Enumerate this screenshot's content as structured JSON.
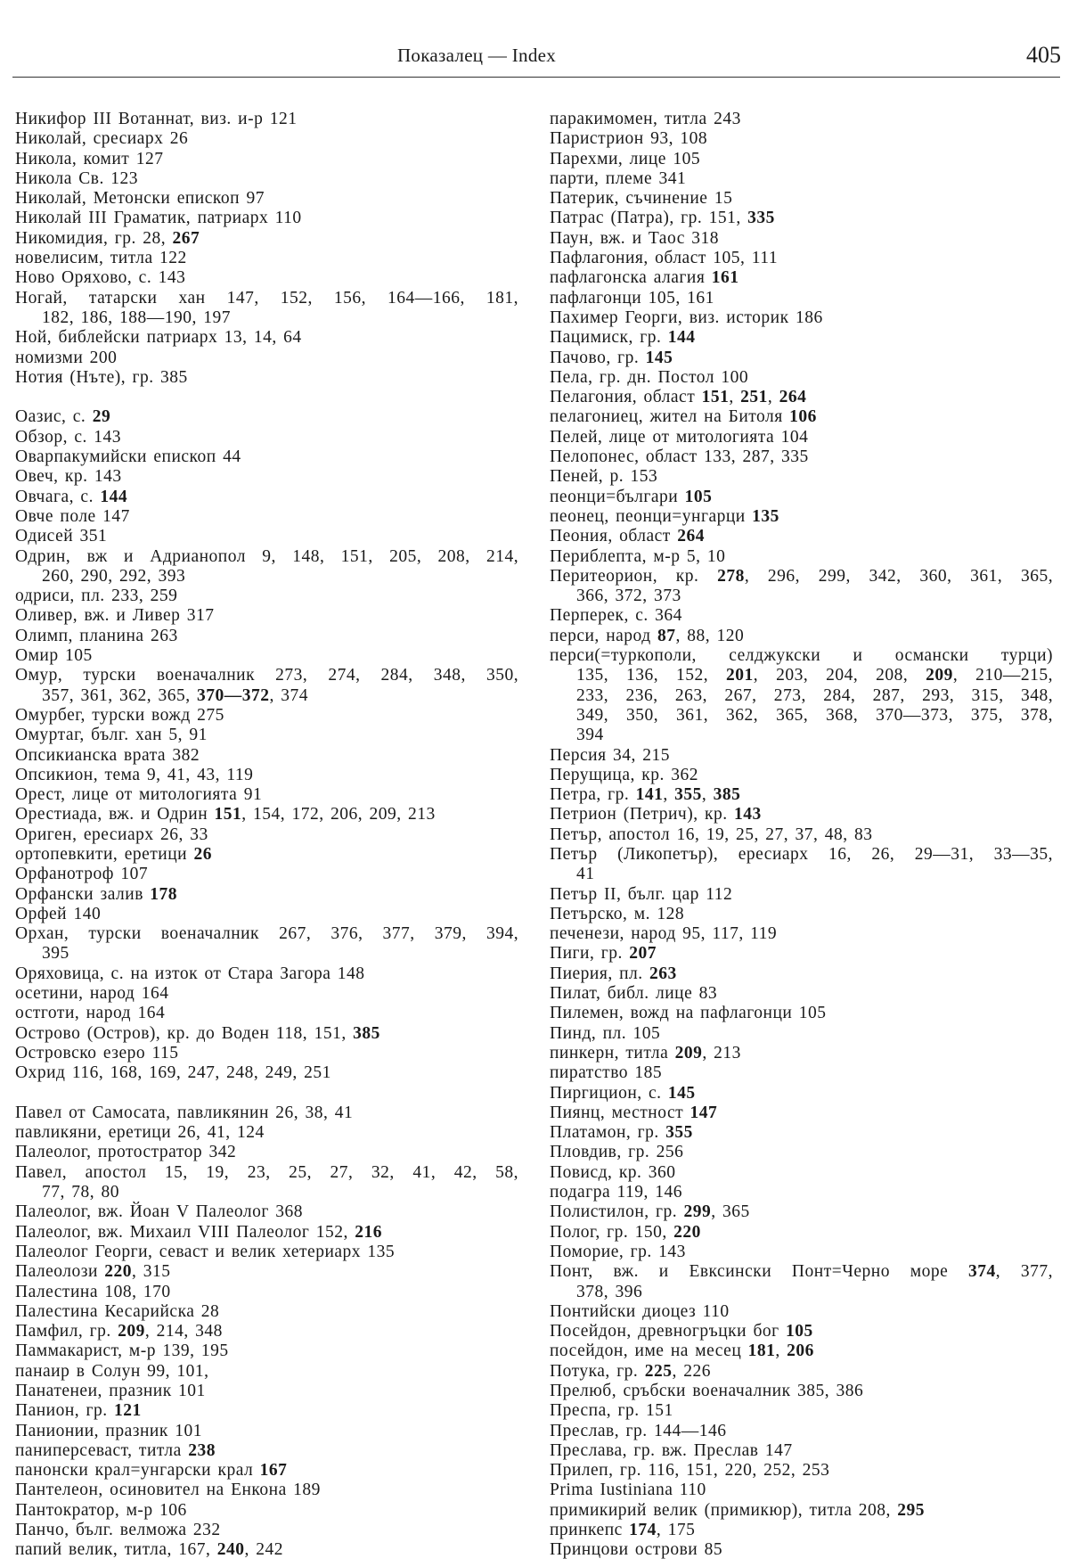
{
  "header": {
    "running_title": "Показалец — Index",
    "page_number": "405"
  },
  "columns": [
    [
      {
        "lines": [
          "Никифор III Вотаннат, виз. и-р 121"
        ]
      },
      {
        "lines": [
          "Николай, сресиарх 26"
        ]
      },
      {
        "lines": [
          "Никола, комит 127"
        ]
      },
      {
        "lines": [
          "Никола Св. 123"
        ]
      },
      {
        "lines": [
          "Николай, Метонски епископ 97"
        ]
      },
      {
        "lines": [
          "Николай III Граматик, патриарх 110"
        ]
      },
      {
        "lines": [
          "Никомидия, гр. 28, 267"
        ],
        "bold": [
          "267"
        ]
      },
      {
        "lines": [
          "новелисим, титла 122"
        ]
      },
      {
        "lines": [
          "Ново Оряхово, с. 143"
        ]
      },
      {
        "lines": [
          "Ногай, татарски хан 147, 152, 156, 164—166, 181,",
          "182, 186, 188—190, 197"
        ]
      },
      {
        "lines": [
          "Ной, библейски патриарх 13, 14, 64"
        ]
      },
      {
        "lines": [
          "номизми 200"
        ]
      },
      {
        "lines": [
          "Нотия (Нъте), гр. 385"
        ]
      },
      {
        "lines": [
          ""
        ]
      },
      {
        "lines": [
          "Оазис, с. 29"
        ],
        "bold": [
          "29"
        ]
      },
      {
        "lines": [
          "Обзор, с. 143"
        ]
      },
      {
        "lines": [
          "Оварпакумийски епископ 44"
        ]
      },
      {
        "lines": [
          "Овеч, кр. 143"
        ]
      },
      {
        "lines": [
          "Овчага, с. 144"
        ],
        "bold": [
          "144"
        ]
      },
      {
        "lines": [
          "Овче поле 147"
        ]
      },
      {
        "lines": [
          "Одисей 351"
        ]
      },
      {
        "lines": [
          "Одрин, вж и Адрианопол 9, 148, 151, 205, 208, 214,",
          "260, 290, 292, 393"
        ]
      },
      {
        "lines": [
          "одриси, пл. 233, 259"
        ]
      },
      {
        "lines": [
          "Оливер, вж. и Ливер 317"
        ]
      },
      {
        "lines": [
          "Олимп, планина 263"
        ]
      },
      {
        "lines": [
          "Омир 105"
        ]
      },
      {
        "lines": [
          "Омур, турски военачалник 273, 274, 284, 348, 350,",
          "357, 361, 362, 365, 370—372, 374"
        ],
        "bold": [
          "370—372"
        ]
      },
      {
        "lines": [
          "Омурбег, турски вожд 275"
        ]
      },
      {
        "lines": [
          "Омуртаг, бълг. хан 5, 91"
        ]
      },
      {
        "lines": [
          "Опсикианска врата 382"
        ]
      },
      {
        "lines": [
          "Опсикион, тема 9, 41, 43, 119"
        ]
      },
      {
        "lines": [
          "Орест, лице от митологията 91"
        ]
      },
      {
        "lines": [
          "Орестиада, вж. и Одрин 151, 154, 172, 206, 209, 213"
        ],
        "bold": [
          "151"
        ]
      },
      {
        "lines": [
          "Ориген, ересиарх 26, 33"
        ]
      },
      {
        "lines": [
          "ортопевкити, еретици 26"
        ],
        "bold": [
          "26"
        ]
      },
      {
        "lines": [
          "Орфанотроф 107"
        ]
      },
      {
        "lines": [
          "Орфански залив 178"
        ],
        "bold": [
          "178"
        ]
      },
      {
        "lines": [
          "Орфей 140"
        ]
      },
      {
        "lines": [
          "Орхан, турски военачалник 267, 376, 377, 379, 394,",
          "395"
        ]
      },
      {
        "lines": [
          "Оряховица, с. на изток от Стара Загора 148"
        ]
      },
      {
        "lines": [
          "осетини, народ 164"
        ]
      },
      {
        "lines": [
          "остготи, народ 164"
        ]
      },
      {
        "lines": [
          "Острово (Остров), кр. до Воден 118, 151, 385"
        ],
        "bold": [
          "385"
        ]
      },
      {
        "lines": [
          "Островско езеро 115"
        ]
      },
      {
        "lines": [
          "Охрид 116, 168, 169, 247, 248, 249, 251"
        ]
      },
      {
        "lines": [
          ""
        ]
      },
      {
        "lines": [
          "Павел от Самосата, павликянин 26, 38, 41"
        ]
      },
      {
        "lines": [
          "павликяни, еретици 26, 41, 124"
        ]
      },
      {
        "lines": [
          "Палеолог, протостратор 342"
        ]
      },
      {
        "lines": [
          "Павел, апостол 15, 19, 23, 25, 27, 32, 41, 42, 58,",
          "77, 78, 80"
        ]
      },
      {
        "lines": [
          "Палеолог, вж. Йоан V Палеолог 368"
        ]
      },
      {
        "lines": [
          "Палеолог, вж. Михаил VIII Палеолог 152, 216"
        ],
        "bold": [
          "216"
        ]
      },
      {
        "lines": [
          "Палеолог Георги, севаст и велик хетериарх 135"
        ]
      },
      {
        "lines": [
          "Палеолози 220, 315"
        ],
        "bold": [
          "220"
        ]
      },
      {
        "lines": [
          "Палестина 108, 170"
        ]
      },
      {
        "lines": [
          "Палестина Кесарийска 28"
        ]
      },
      {
        "lines": [
          "Памфил, гр. 209, 214, 348"
        ],
        "bold": [
          "209"
        ]
      },
      {
        "lines": [
          "Паммакарист, м-р 139, 195"
        ]
      },
      {
        "lines": [
          "панаир в Солун 99, 101,"
        ]
      },
      {
        "lines": [
          "Панатенеи, празник 101"
        ]
      },
      {
        "lines": [
          "Панион, гр. 121"
        ],
        "bold": [
          "121"
        ]
      },
      {
        "lines": [
          "Панионии, празник 101"
        ]
      },
      {
        "lines": [
          "паниперсеваст, титла 238"
        ],
        "bold": [
          "238"
        ]
      },
      {
        "lines": [
          "панонски крал=унгарски крал 167"
        ],
        "bold": [
          "167"
        ]
      },
      {
        "lines": [
          "Пантелеон, осиновител на Енкона 189"
        ]
      },
      {
        "lines": [
          "Пантократор, м-р 106"
        ]
      },
      {
        "lines": [
          "Панчо, бълг. велможа 232"
        ]
      },
      {
        "lines": [
          "папий велик, титла, 167, 240, 242"
        ],
        "bold": [
          "240"
        ]
      }
    ],
    [
      {
        "lines": [
          "паракимомен, титла 243"
        ]
      },
      {
        "lines": [
          "Паристрион 93, 108"
        ]
      },
      {
        "lines": [
          "Парехми, лице 105"
        ]
      },
      {
        "lines": [
          "парти, племе 341"
        ]
      },
      {
        "lines": [
          "Патерик, съчинение 15"
        ]
      },
      {
        "lines": [
          "Патрас (Патра), гр. 151, 335"
        ],
        "bold": [
          "335"
        ]
      },
      {
        "lines": [
          "Паун, вж. и Таос 318"
        ]
      },
      {
        "lines": [
          "Пафлагония, област 105, 111"
        ]
      },
      {
        "lines": [
          "пафлагонска алагия 161"
        ],
        "bold": [
          "161"
        ]
      },
      {
        "lines": [
          "пафлагонци 105, 161"
        ]
      },
      {
        "lines": [
          "Пахимер Георги, виз. историк 186"
        ]
      },
      {
        "lines": [
          "Пацимиск, гр. 144"
        ],
        "bold": [
          "144"
        ]
      },
      {
        "lines": [
          "Пачово, гр. 145"
        ],
        "bold": [
          "145"
        ]
      },
      {
        "lines": [
          "Пела, гр. дн. Постол 100"
        ]
      },
      {
        "lines": [
          "Пелагония, област 151, 251, 264"
        ],
        "bold": [
          "151",
          "251",
          "264"
        ]
      },
      {
        "lines": [
          "пелагониец, жител на Битоля 106"
        ],
        "bold": [
          "106"
        ]
      },
      {
        "lines": [
          "Пелей, лице от митологията 104"
        ]
      },
      {
        "lines": [
          "Пелопонес, област 133, 287, 335"
        ]
      },
      {
        "lines": [
          "Пеней, р. 153"
        ]
      },
      {
        "lines": [
          "пеонци=българи 105"
        ],
        "bold": [
          "105"
        ]
      },
      {
        "lines": [
          "пеонец, пеонци=унгарци 135"
        ],
        "bold": [
          "135"
        ]
      },
      {
        "lines": [
          "Пеония, област 264"
        ],
        "bold": [
          "264"
        ]
      },
      {
        "lines": [
          "Периблепта, м-р 5, 10"
        ]
      },
      {
        "lines": [
          "Перитеорион, кр. 278, 296, 299, 342, 360, 361, 365,",
          "366, 372, 373"
        ],
        "bold": [
          "278"
        ]
      },
      {
        "lines": [
          "Перперек, с. 364"
        ]
      },
      {
        "lines": [
          "перси, народ 87, 88, 120"
        ],
        "bold": [
          "87"
        ]
      },
      {
        "lines": [
          "перси(=туркополи, селджукски и османски турци)",
          "135, 136, 152, 201, 203, 204, 208, 209, 210—215,",
          "233, 236, 263, 267, 273, 284, 287, 293, 315, 348,",
          "349, 350, 361, 362, 365, 368, 370—373, 375, 378,",
          "394"
        ],
        "bold": [
          "201",
          "209"
        ]
      },
      {
        "lines": [
          "Персия 34, 215"
        ]
      },
      {
        "lines": [
          "Перущица, кр. 362"
        ]
      },
      {
        "lines": [
          "Петра, гр. 141, 355, 385"
        ],
        "bold": [
          "141",
          "355",
          "385"
        ]
      },
      {
        "lines": [
          "Петрион (Петрич), кр. 143"
        ],
        "bold": [
          "143"
        ]
      },
      {
        "lines": [
          "Петър, апостол 16, 19, 25, 27, 37, 48, 83"
        ]
      },
      {
        "lines": [
          "Петър (Ликопетър), ересиарх 16, 26, 29—31, 33—35,",
          "41"
        ]
      },
      {
        "lines": [
          "Петър II, бълг. цар 112"
        ]
      },
      {
        "lines": [
          "Петърско, м. 128"
        ]
      },
      {
        "lines": [
          "печенези, народ 95, 117, 119"
        ]
      },
      {
        "lines": [
          "Пиги, гр. 207"
        ],
        "bold": [
          "207"
        ]
      },
      {
        "lines": [
          "Пиерия, пл. 263"
        ],
        "bold": [
          "263"
        ]
      },
      {
        "lines": [
          "Пилат, библ. лице 83"
        ]
      },
      {
        "lines": [
          "Пилемен, вожд на пафлагонци 105"
        ]
      },
      {
        "lines": [
          "Пинд, пл. 105"
        ]
      },
      {
        "lines": [
          "пинкерн, титла 209, 213"
        ],
        "bold": [
          "209"
        ]
      },
      {
        "lines": [
          "пиратство 185"
        ]
      },
      {
        "lines": [
          "Пиргицион, с. 145"
        ],
        "bold": [
          "145"
        ]
      },
      {
        "lines": [
          "Пиянц, местност 147"
        ],
        "bold": [
          "147"
        ]
      },
      {
        "lines": [
          "Платамон, гр. 355"
        ],
        "bold": [
          "355"
        ]
      },
      {
        "lines": [
          "Пловдив, гр. 256"
        ]
      },
      {
        "lines": [
          "Повисд, кр. 360"
        ]
      },
      {
        "lines": [
          "подагра 119, 146"
        ]
      },
      {
        "lines": [
          "Полистилон, гр. 299, 365"
        ],
        "bold": [
          "299"
        ]
      },
      {
        "lines": [
          "Полог, гр. 150, 220"
        ],
        "bold": [
          "220"
        ]
      },
      {
        "lines": [
          "Поморие, гр. 143"
        ]
      },
      {
        "lines": [
          "Понт, вж. и Евксински Понт=Черно море 374, 377,",
          "378, 396"
        ],
        "bold": [
          "374"
        ]
      },
      {
        "lines": [
          "Понтийски диоцез 110"
        ]
      },
      {
        "lines": [
          "Посейдон, древногръцки бог 105"
        ],
        "bold": [
          "105"
        ]
      },
      {
        "lines": [
          "посейдон, име на месец 181, 206"
        ],
        "bold": [
          "181",
          "206"
        ]
      },
      {
        "lines": [
          "Потука, гр. 225, 226"
        ],
        "bold": [
          "225"
        ]
      },
      {
        "lines": [
          "Прелюб, сръбски военачалник 385, 386"
        ]
      },
      {
        "lines": [
          "Преспа, гр. 151"
        ]
      },
      {
        "lines": [
          "Преслав, гр. 144—146"
        ]
      },
      {
        "lines": [
          "Преслава, гр. вж. Преслав 147"
        ]
      },
      {
        "lines": [
          "Прилеп, гр. 116, 151, 220, 252, 253"
        ]
      },
      {
        "lines": [
          "Prima Iustiniana 110"
        ]
      },
      {
        "lines": [
          "примикирий велик (примикюр), титла 208, 295"
        ],
        "bold": [
          "295"
        ]
      },
      {
        "lines": [
          "принкепс 174, 175"
        ],
        "bold": [
          "174"
        ]
      },
      {
        "lines": [
          "Принцови острови 85"
        ]
      }
    ]
  ]
}
